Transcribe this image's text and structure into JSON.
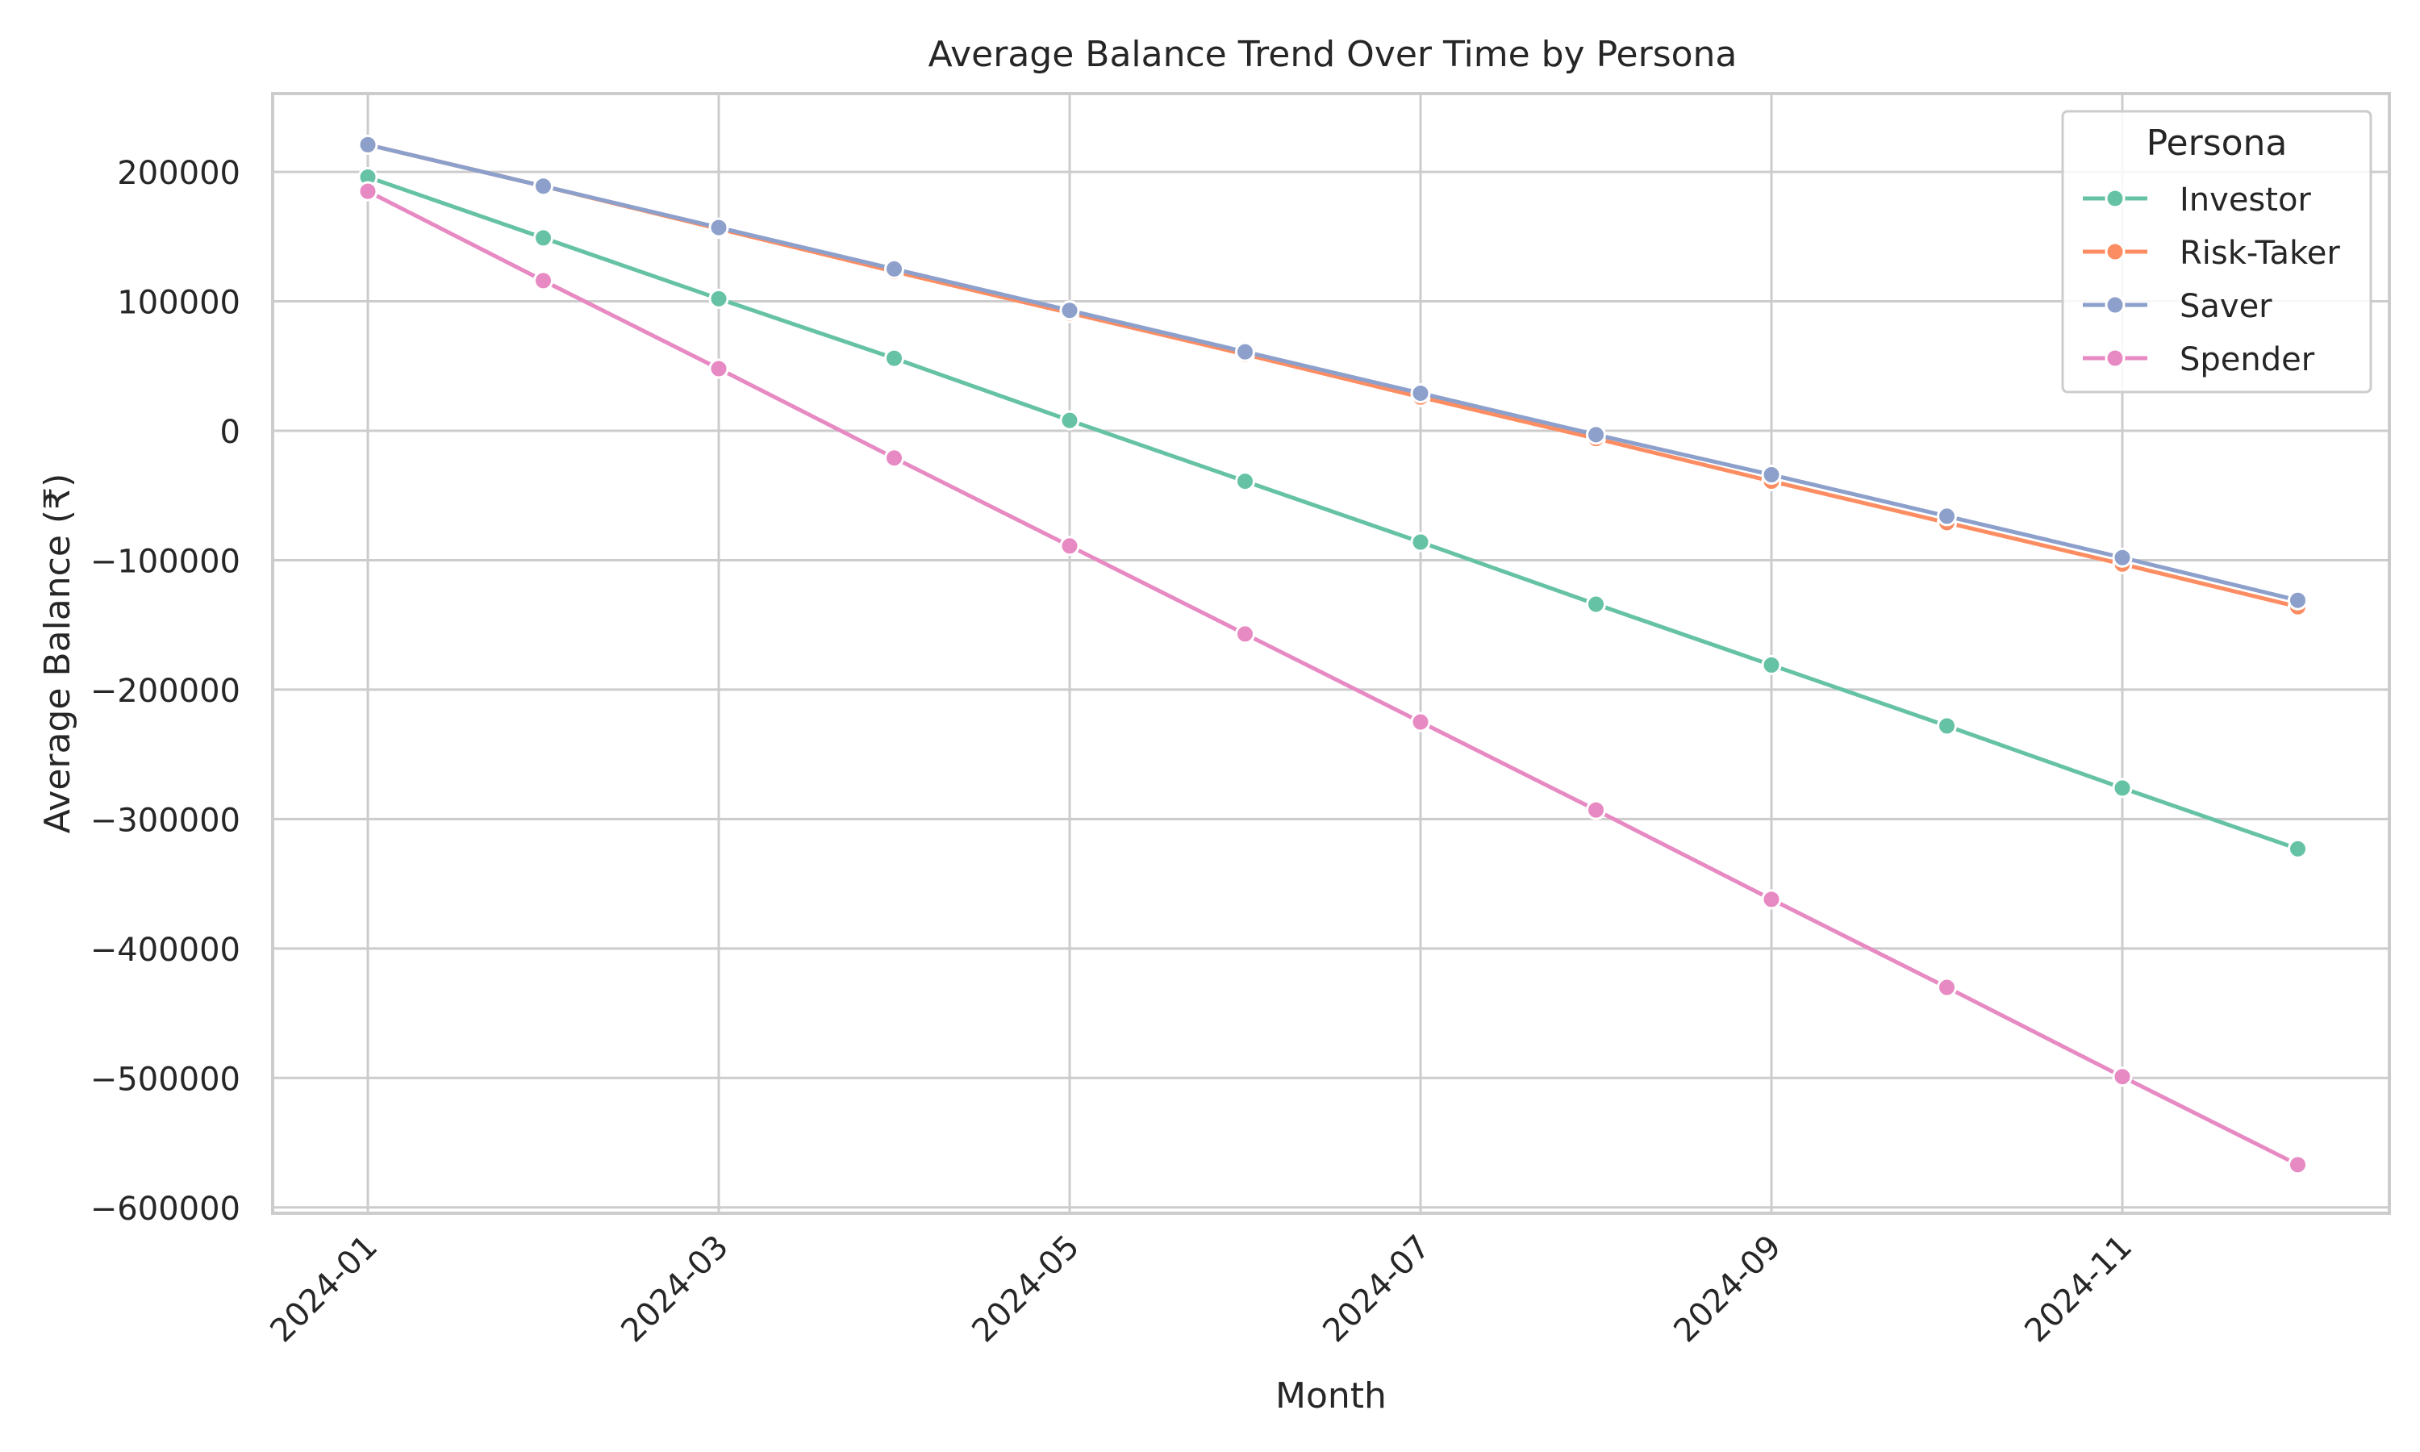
{
  "chart_data": {
    "type": "line",
    "title": "Average Balance Trend Over Time by Persona",
    "xlabel": "Month",
    "ylabel": "Average Balance (₹)",
    "x": [
      "2024-01",
      "2024-02",
      "2024-03",
      "2024-04",
      "2024-05",
      "2024-06",
      "2024-07",
      "2024-08",
      "2024-09",
      "2024-10",
      "2024-11",
      "2024-12"
    ],
    "x_tick_labels": [
      "2024-01",
      "2024-03",
      "2024-05",
      "2024-07",
      "2024-09",
      "2024-11"
    ],
    "y_ticks": [
      200000,
      100000,
      0,
      -100000,
      -200000,
      -300000,
      -400000,
      -500000,
      -600000
    ],
    "y_tick_labels": [
      "200000",
      "100000",
      "0",
      "−100000",
      "−200000",
      "−300000",
      "−400000",
      "−500000",
      "−600000"
    ],
    "ylim": [
      -605000,
      260000
    ],
    "grid": true,
    "legend": {
      "title": "Persona",
      "placement": "top-right"
    },
    "series": [
      {
        "name": "Investor",
        "color": "#66c2a5",
        "values": [
          196000,
          149000,
          102000,
          56000,
          8000,
          -39000,
          -86000,
          -134000,
          -181000,
          -228000,
          -276000,
          -323000
        ]
      },
      {
        "name": "Risk-Taker",
        "color": "#fc8d62",
        "values": [
          221000,
          189000,
          156000,
          123000,
          91000,
          59000,
          26000,
          -6000,
          -39000,
          -71000,
          -103000,
          -136000
        ]
      },
      {
        "name": "Saver",
        "color": "#8da0cb",
        "values": [
          221000,
          189000,
          157000,
          125000,
          93000,
          61000,
          29000,
          -3000,
          -34000,
          -66000,
          -98000,
          -131000
        ]
      },
      {
        "name": "Spender",
        "color": "#e78ac3",
        "values": [
          185000,
          116000,
          48000,
          -21000,
          -89000,
          -157000,
          -225000,
          -293000,
          -362000,
          -430000,
          -499000,
          -567000
        ]
      }
    ]
  }
}
